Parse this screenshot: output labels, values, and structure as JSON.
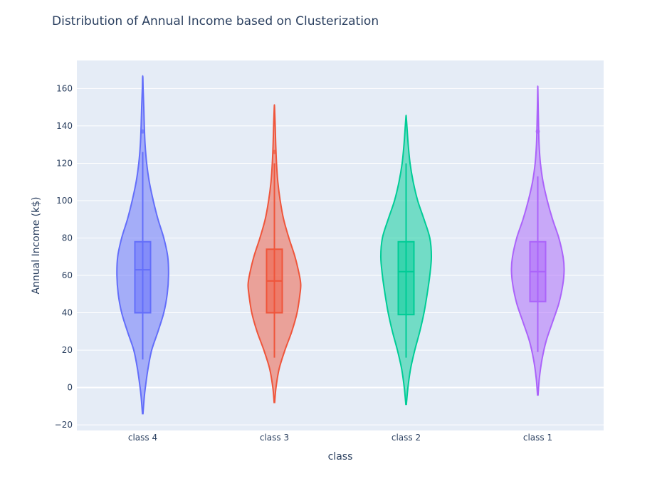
{
  "chart_data": {
    "type": "violin",
    "title": "Distribution of Annual Income based on Clusterization",
    "xlabel": "class",
    "ylabel": "Annual Income (k$)",
    "ylim": [
      -23,
      175
    ],
    "yticks": [
      {
        "value": -20,
        "label": "−20"
      },
      {
        "value": 0,
        "label": "0"
      },
      {
        "value": 20,
        "label": "20"
      },
      {
        "value": 40,
        "label": "40"
      },
      {
        "value": 60,
        "label": "60"
      },
      {
        "value": 80,
        "label": "80"
      },
      {
        "value": 100,
        "label": "100"
      },
      {
        "value": 120,
        "label": "120"
      },
      {
        "value": 140,
        "label": "140"
      },
      {
        "value": 160,
        "label": "160"
      }
    ],
    "grid": true,
    "plot_background": "#e5ecf6",
    "categories": [
      "class 4",
      "class 3",
      "class 2",
      "class 1"
    ],
    "series": [
      {
        "category": "class 4",
        "color": "#636efa",
        "min": 15,
        "q1": 40,
        "median": 63,
        "q3": 78,
        "max": 126,
        "outliers": [
          137
        ],
        "kde_range": [
          -14,
          166
        ],
        "density": [
          [
            -14,
            0.01
          ],
          [
            -5,
            0.06
          ],
          [
            0,
            0.1
          ],
          [
            10,
            0.2
          ],
          [
            20,
            0.34
          ],
          [
            30,
            0.58
          ],
          [
            40,
            0.8
          ],
          [
            50,
            0.93
          ],
          [
            60,
            0.98
          ],
          [
            70,
            0.95
          ],
          [
            80,
            0.8
          ],
          [
            90,
            0.58
          ],
          [
            100,
            0.4
          ],
          [
            110,
            0.25
          ],
          [
            120,
            0.15
          ],
          [
            130,
            0.09
          ],
          [
            140,
            0.06
          ],
          [
            150,
            0.04
          ],
          [
            160,
            0.015
          ],
          [
            166,
            0.005
          ]
        ]
      },
      {
        "category": "class 3",
        "color": "#ef553b",
        "min": 16,
        "q1": 40,
        "median": 57,
        "q3": 74,
        "max": 120,
        "outliers": [
          126
        ],
        "kde_range": [
          -8,
          150
        ],
        "density": [
          [
            -8,
            0.01
          ],
          [
            0,
            0.06
          ],
          [
            10,
            0.18
          ],
          [
            20,
            0.4
          ],
          [
            30,
            0.66
          ],
          [
            40,
            0.86
          ],
          [
            50,
            0.97
          ],
          [
            55,
            1.0
          ],
          [
            60,
            0.95
          ],
          [
            70,
            0.78
          ],
          [
            80,
            0.55
          ],
          [
            90,
            0.35
          ],
          [
            100,
            0.22
          ],
          [
            110,
            0.13
          ],
          [
            120,
            0.08
          ],
          [
            130,
            0.05
          ],
          [
            140,
            0.03
          ],
          [
            150,
            0.005
          ]
        ]
      },
      {
        "category": "class 2",
        "color": "#00cc96",
        "min": 16,
        "q1": 39,
        "median": 62,
        "q3": 78,
        "max": 120,
        "outliers": [],
        "kde_range": [
          -9,
          145
        ],
        "density": [
          [
            -9,
            0.01
          ],
          [
            0,
            0.07
          ],
          [
            10,
            0.17
          ],
          [
            20,
            0.33
          ],
          [
            30,
            0.52
          ],
          [
            40,
            0.68
          ],
          [
            50,
            0.8
          ],
          [
            60,
            0.9
          ],
          [
            70,
            0.96
          ],
          [
            80,
            0.9
          ],
          [
            90,
            0.68
          ],
          [
            100,
            0.44
          ],
          [
            110,
            0.27
          ],
          [
            120,
            0.15
          ],
          [
            130,
            0.08
          ],
          [
            140,
            0.03
          ],
          [
            145,
            0.005
          ]
        ]
      },
      {
        "category": "class 1",
        "color": "#ab63fa",
        "min": 19,
        "q1": 46,
        "median": 62,
        "q3": 78,
        "max": 113,
        "outliers": [
          137
        ],
        "kde_range": [
          -4,
          160
        ],
        "density": [
          [
            -4,
            0.01
          ],
          [
            5,
            0.06
          ],
          [
            15,
            0.16
          ],
          [
            25,
            0.32
          ],
          [
            35,
            0.56
          ],
          [
            45,
            0.8
          ],
          [
            55,
            0.95
          ],
          [
            63,
            1.0
          ],
          [
            70,
            0.96
          ],
          [
            80,
            0.8
          ],
          [
            90,
            0.56
          ],
          [
            100,
            0.36
          ],
          [
            110,
            0.2
          ],
          [
            120,
            0.1
          ],
          [
            130,
            0.05
          ],
          [
            140,
            0.03
          ],
          [
            150,
            0.015
          ],
          [
            160,
            0.003
          ]
        ]
      }
    ]
  }
}
